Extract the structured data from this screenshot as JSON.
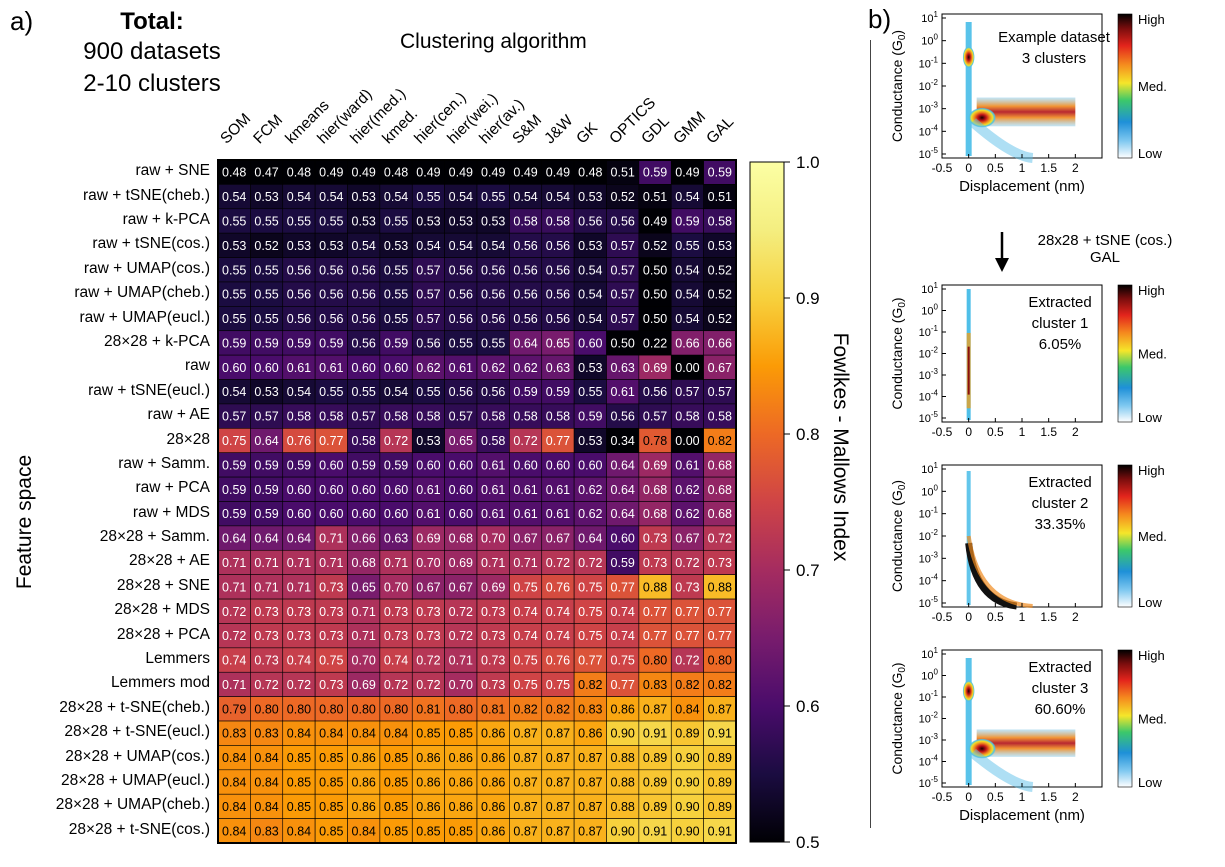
{
  "panel_a": {
    "label": "a)",
    "summary": {
      "title": "Total:",
      "line1": "900 datasets",
      "line2": "2-10 clusters"
    }
  },
  "panel_b": {
    "label": "b)",
    "arrow_text_line1": "28x28 + tSNE (cos.)",
    "arrow_text_line2": "GAL",
    "subplots": [
      {
        "annotation": [
          "Example dataset",
          "3 clusters"
        ],
        "show_xlabel": true
      },
      {
        "annotation": [
          "Extracted",
          "cluster 1",
          "6.05%"
        ],
        "show_xlabel": false
      },
      {
        "annotation": [
          "Extracted",
          "cluster 2",
          "33.35%"
        ],
        "show_xlabel": false
      },
      {
        "annotation": [
          "Extracted",
          "cluster 3",
          "60.60%"
        ],
        "show_xlabel": true
      }
    ],
    "xlabel": "Displacement (nm)",
    "ylabel": "Conductance (G",
    "ylabel_sub": "0",
    "ylabel_end": ")",
    "xticks": [
      "-0.5",
      "0",
      "0.5",
      "1",
      "1.5",
      "2"
    ],
    "ytick_exponents": [
      "1",
      "0",
      "-1",
      "-2",
      "-3",
      "-4",
      "-5"
    ],
    "ytick_base": "10",
    "colorbar_labels": {
      "high": "High",
      "med": "Med.",
      "low": "Low"
    }
  },
  "chart_data": {
    "type": "heatmap",
    "title": "",
    "xlabel": "Clustering algorithm",
    "ylabel": "Feature space",
    "colorbar_label": "Fowlkes - Mallows Index",
    "colorbar_range": [
      0.5,
      1.0
    ],
    "colorbar_ticks": [
      "1.0",
      "0.9",
      "0.8",
      "0.7",
      "0.6",
      "0.5"
    ],
    "columns": [
      "SOM",
      "FCM",
      "kmeans",
      "hier(ward)",
      "hier(med.)",
      "kmed.",
      "hier(cen.)",
      "hier(wei.)",
      "hier(av.)",
      "S&M",
      "J&W",
      "GK",
      "OPTICS",
      "GDL",
      "GMM",
      "GAL"
    ],
    "rows": [
      "raw + SNE",
      "raw + tSNE(cheb.)",
      "raw + k-PCA",
      "raw + tSNE(cos.)",
      "raw + UMAP(cos.)",
      "raw + UMAP(cheb.)",
      "raw + UMAP(eucl.)",
      "28×28 + k-PCA",
      "raw",
      "raw + tSNE(eucl.)",
      "raw + AE",
      "28×28",
      "raw + Samm.",
      "raw + PCA",
      "raw + MDS",
      "28×28 + Samm.",
      "28×28 + AE",
      "28×28 + SNE",
      "28×28 + MDS",
      "28×28 + PCA",
      "Lemmers",
      "Lemmers mod",
      "28×28 + t-SNE(cheb.)",
      "28×28 + t-SNE(eucl.)",
      "28×28 + UMAP(cos.)",
      "28×28 + UMAP(eucl.)",
      "28×28 + UMAP(cheb.)",
      "28×28 + t-SNE(cos.)"
    ],
    "values": [
      [
        0.48,
        0.47,
        0.48,
        0.49,
        0.49,
        0.48,
        0.49,
        0.49,
        0.49,
        0.49,
        0.49,
        0.48,
        0.51,
        0.59,
        0.49,
        0.59
      ],
      [
        0.54,
        0.53,
        0.54,
        0.54,
        0.53,
        0.54,
        0.55,
        0.54,
        0.55,
        0.54,
        0.54,
        0.53,
        0.52,
        0.51,
        0.54,
        0.51
      ],
      [
        0.55,
        0.55,
        0.55,
        0.55,
        0.53,
        0.55,
        0.53,
        0.53,
        0.53,
        0.58,
        0.58,
        0.56,
        0.56,
        0.49,
        0.59,
        0.58
      ],
      [
        0.53,
        0.52,
        0.53,
        0.53,
        0.54,
        0.53,
        0.54,
        0.54,
        0.54,
        0.56,
        0.56,
        0.53,
        0.57,
        0.52,
        0.55,
        0.53
      ],
      [
        0.55,
        0.55,
        0.56,
        0.56,
        0.56,
        0.55,
        0.57,
        0.56,
        0.56,
        0.56,
        0.56,
        0.54,
        0.57,
        0.5,
        0.54,
        0.52
      ],
      [
        0.55,
        0.55,
        0.56,
        0.56,
        0.56,
        0.55,
        0.57,
        0.56,
        0.56,
        0.56,
        0.56,
        0.54,
        0.57,
        0.5,
        0.54,
        0.52
      ],
      [
        0.55,
        0.55,
        0.56,
        0.56,
        0.56,
        0.55,
        0.57,
        0.56,
        0.56,
        0.56,
        0.56,
        0.54,
        0.57,
        0.5,
        0.54,
        0.52
      ],
      [
        0.59,
        0.59,
        0.59,
        0.59,
        0.56,
        0.59,
        0.56,
        0.55,
        0.55,
        0.64,
        0.65,
        0.6,
        0.5,
        0.22,
        0.66,
        0.66
      ],
      [
        0.6,
        0.6,
        0.61,
        0.61,
        0.6,
        0.6,
        0.62,
        0.61,
        0.62,
        0.62,
        0.63,
        0.53,
        0.63,
        0.69,
        0.0,
        0.67
      ],
      [
        0.54,
        0.53,
        0.54,
        0.55,
        0.55,
        0.54,
        0.55,
        0.56,
        0.56,
        0.59,
        0.59,
        0.55,
        0.61,
        0.56,
        0.57,
        0.57
      ],
      [
        0.57,
        0.57,
        0.58,
        0.58,
        0.57,
        0.58,
        0.58,
        0.57,
        0.58,
        0.58,
        0.58,
        0.59,
        0.56,
        0.57,
        0.58,
        0.58
      ],
      [
        0.75,
        0.64,
        0.76,
        0.77,
        0.58,
        0.72,
        0.53,
        0.65,
        0.58,
        0.72,
        0.77,
        0.53,
        0.34,
        0.78,
        0.0,
        0.82
      ],
      [
        0.59,
        0.59,
        0.59,
        0.6,
        0.59,
        0.59,
        0.6,
        0.6,
        0.61,
        0.6,
        0.6,
        0.6,
        0.64,
        0.69,
        0.61,
        0.68
      ],
      [
        0.59,
        0.59,
        0.6,
        0.6,
        0.6,
        0.6,
        0.61,
        0.6,
        0.61,
        0.61,
        0.61,
        0.62,
        0.64,
        0.68,
        0.62,
        0.68
      ],
      [
        0.59,
        0.59,
        0.6,
        0.6,
        0.6,
        0.6,
        0.61,
        0.6,
        0.61,
        0.61,
        0.61,
        0.62,
        0.64,
        0.68,
        0.62,
        0.68
      ],
      [
        0.64,
        0.64,
        0.64,
        0.71,
        0.66,
        0.63,
        0.69,
        0.68,
        0.7,
        0.67,
        0.67,
        0.64,
        0.6,
        0.73,
        0.67,
        0.72
      ],
      [
        0.71,
        0.71,
        0.71,
        0.71,
        0.68,
        0.71,
        0.7,
        0.69,
        0.71,
        0.71,
        0.72,
        0.72,
        0.59,
        0.73,
        0.72,
        0.73
      ],
      [
        0.71,
        0.71,
        0.71,
        0.73,
        0.65,
        0.7,
        0.67,
        0.67,
        0.69,
        0.75,
        0.76,
        0.75,
        0.77,
        0.88,
        0.73,
        0.88
      ],
      [
        0.72,
        0.73,
        0.73,
        0.73,
        0.71,
        0.73,
        0.73,
        0.72,
        0.73,
        0.74,
        0.74,
        0.75,
        0.74,
        0.77,
        0.77,
        0.77
      ],
      [
        0.72,
        0.73,
        0.73,
        0.73,
        0.71,
        0.73,
        0.73,
        0.72,
        0.73,
        0.74,
        0.74,
        0.75,
        0.74,
        0.77,
        0.77,
        0.77
      ],
      [
        0.74,
        0.73,
        0.74,
        0.75,
        0.7,
        0.74,
        0.72,
        0.71,
        0.73,
        0.75,
        0.76,
        0.77,
        0.75,
        0.8,
        0.72,
        0.8
      ],
      [
        0.71,
        0.72,
        0.72,
        0.73,
        0.69,
        0.72,
        0.72,
        0.7,
        0.73,
        0.75,
        0.75,
        0.82,
        0.77,
        0.83,
        0.82,
        0.82
      ],
      [
        0.79,
        0.8,
        0.8,
        0.8,
        0.8,
        0.8,
        0.81,
        0.8,
        0.81,
        0.82,
        0.82,
        0.83,
        0.86,
        0.87,
        0.84,
        0.87
      ],
      [
        0.83,
        0.83,
        0.84,
        0.84,
        0.84,
        0.84,
        0.85,
        0.85,
        0.86,
        0.87,
        0.87,
        0.86,
        0.9,
        0.91,
        0.89,
        0.91
      ],
      [
        0.84,
        0.84,
        0.85,
        0.85,
        0.86,
        0.85,
        0.86,
        0.86,
        0.86,
        0.87,
        0.87,
        0.87,
        0.88,
        0.89,
        0.9,
        0.89
      ],
      [
        0.84,
        0.84,
        0.85,
        0.85,
        0.86,
        0.85,
        0.86,
        0.86,
        0.86,
        0.87,
        0.87,
        0.87,
        0.88,
        0.89,
        0.9,
        0.89
      ],
      [
        0.84,
        0.84,
        0.85,
        0.85,
        0.86,
        0.85,
        0.86,
        0.86,
        0.86,
        0.87,
        0.87,
        0.87,
        0.88,
        0.89,
        0.9,
        0.89
      ],
      [
        0.84,
        0.83,
        0.84,
        0.85,
        0.84,
        0.85,
        0.85,
        0.85,
        0.86,
        0.87,
        0.87,
        0.87,
        0.9,
        0.91,
        0.9,
        0.91
      ]
    ]
  }
}
